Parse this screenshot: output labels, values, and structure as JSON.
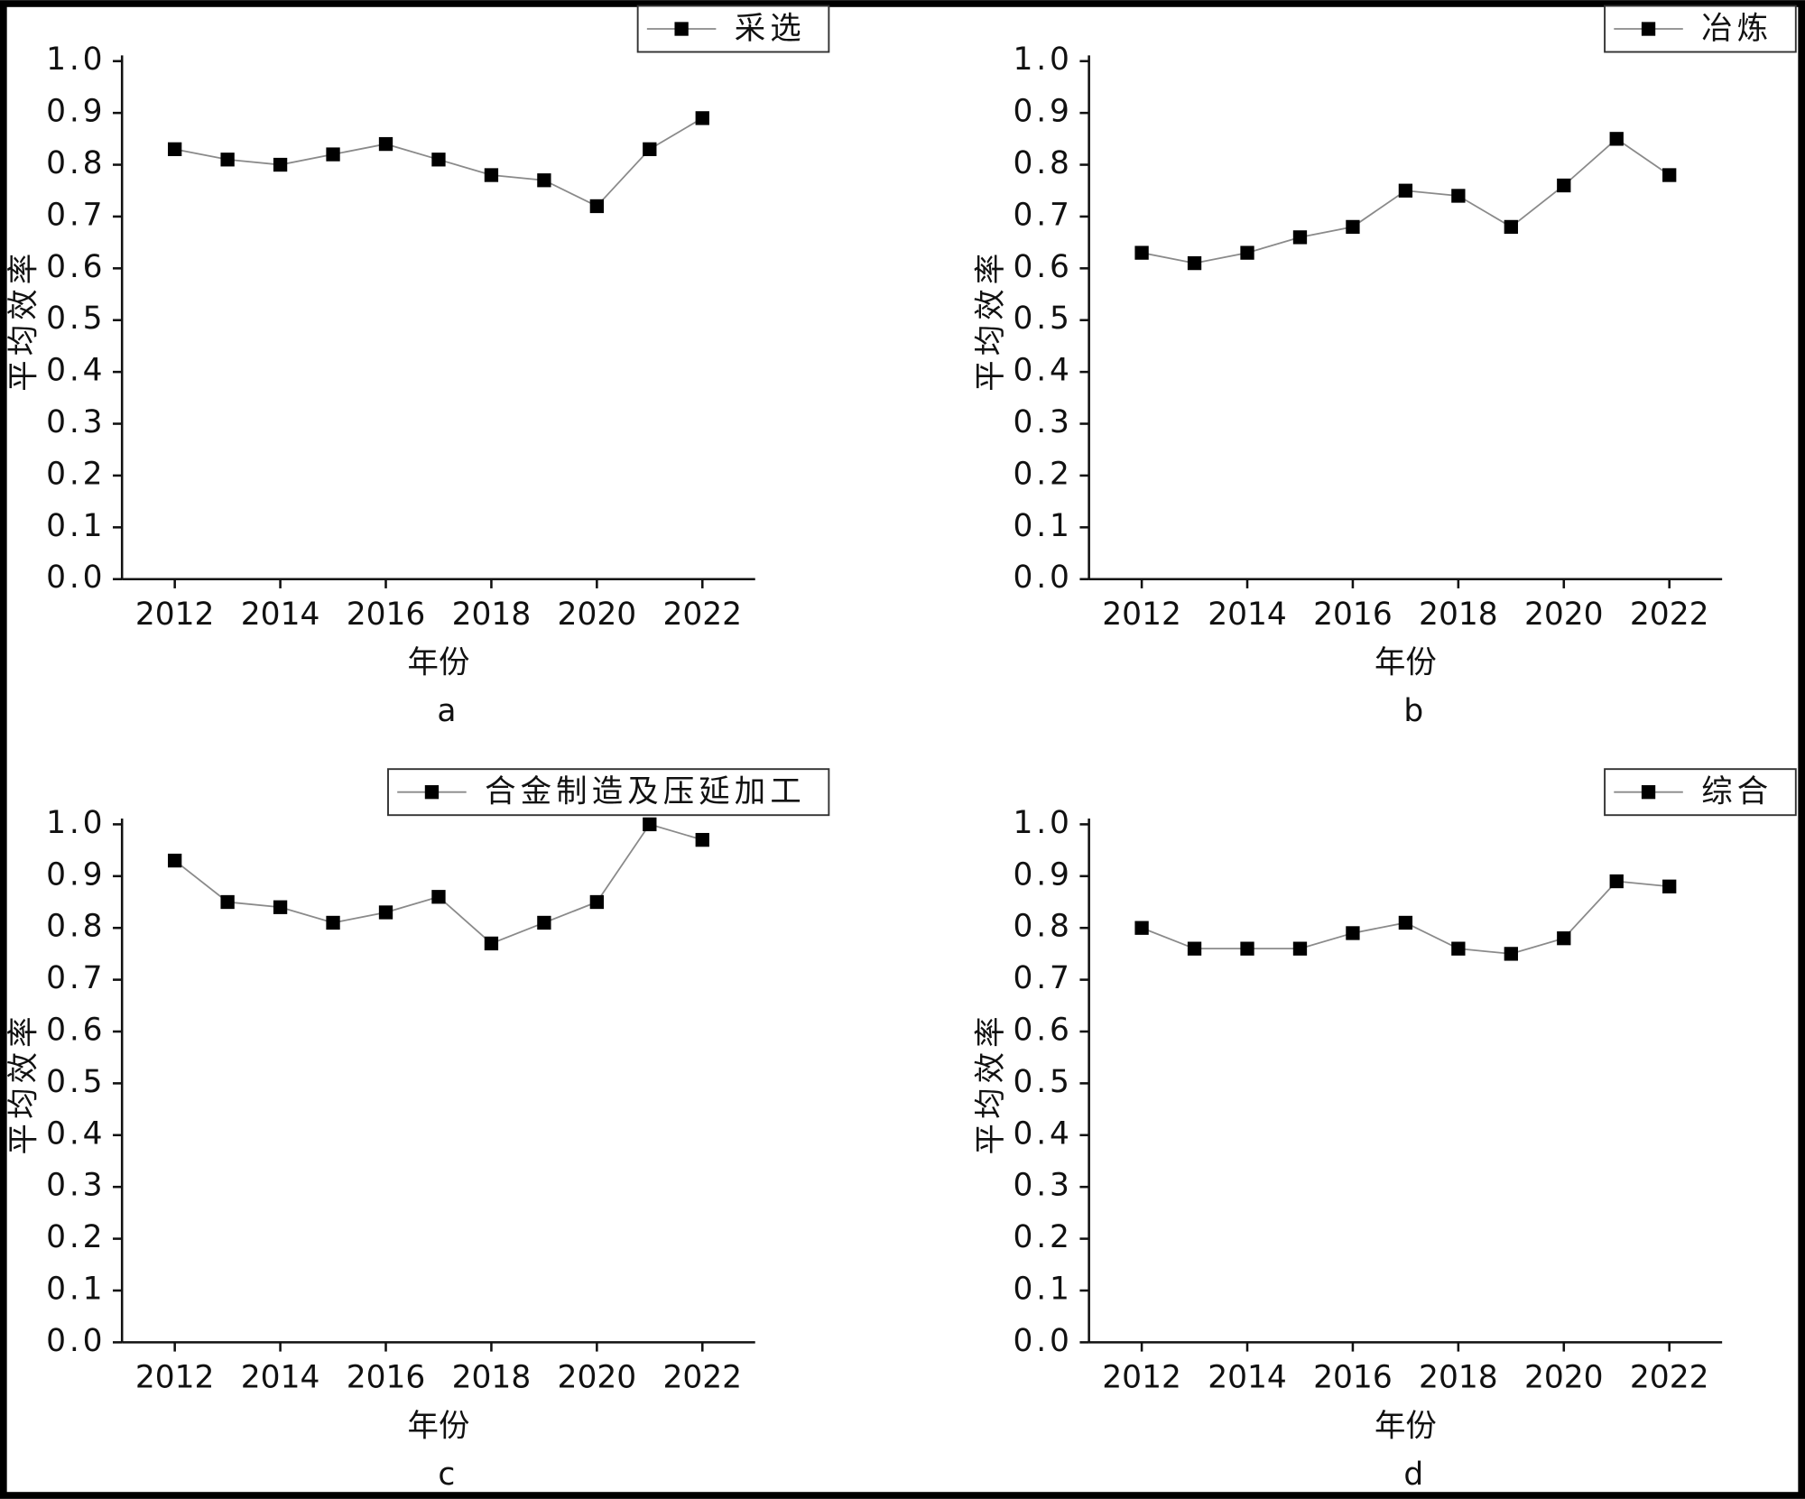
{
  "chart_data": [
    {
      "type": "line",
      "label": "a",
      "xlabel": "年份",
      "ylabel": "平均效率",
      "x": [
        2012,
        2013,
        2014,
        2015,
        2016,
        2017,
        2018,
        2019,
        2020,
        2021,
        2022
      ],
      "series": [
        {
          "name": "采选",
          "color": "#000000",
          "values": [
            0.83,
            0.81,
            0.8,
            0.82,
            0.84,
            0.81,
            0.78,
            0.77,
            0.72,
            0.83,
            0.89
          ]
        }
      ],
      "xlim": [
        2011,
        2023
      ],
      "xticks": [
        2012,
        2014,
        2016,
        2018,
        2020,
        2022
      ],
      "ylim": [
        0,
        1
      ],
      "yticks": [
        {
          "value": 0,
          "label": "0.0"
        },
        0.1,
        0.2,
        0.3,
        0.4,
        0.5,
        0.6,
        0.7,
        0.8,
        0.9,
        {
          "value": 1,
          "label": "1.0"
        }
      ],
      "legend": "upper right"
    },
    {
      "type": "line",
      "label": "b",
      "xlabel": "年份",
      "ylabel": "平均效率",
      "x": [
        2012,
        2013,
        2014,
        2015,
        2016,
        2017,
        2018,
        2019,
        2020,
        2021,
        2022
      ],
      "series": [
        {
          "name": "冶炼",
          "color": "#000000",
          "values": [
            0.63,
            0.61,
            0.63,
            0.66,
            0.68,
            0.75,
            0.74,
            0.68,
            0.76,
            0.85,
            0.78
          ]
        }
      ],
      "xlim": [
        2011,
        2023
      ],
      "xticks": [
        2012,
        2014,
        2016,
        2018,
        2020,
        2022
      ],
      "ylim": [
        0,
        1
      ],
      "yticks": [
        {
          "value": 0,
          "label": "0.0"
        },
        0.1,
        0.2,
        0.3,
        0.4,
        0.5,
        0.6,
        0.7,
        0.8,
        0.9,
        {
          "value": 1,
          "label": "1.0"
        }
      ],
      "legend": "upper right"
    },
    {
      "type": "line",
      "label": "c",
      "xlabel": "年份",
      "ylabel": "平均效率",
      "x": [
        2012,
        2013,
        2014,
        2015,
        2016,
        2017,
        2018,
        2019,
        2020,
        2021,
        2022
      ],
      "series": [
        {
          "name": "合金制造及压延加工",
          "color": "#000000",
          "values": [
            0.93,
            0.85,
            0.84,
            0.81,
            0.83,
            0.86,
            0.77,
            0.81,
            0.85,
            1.0,
            0.97
          ]
        }
      ],
      "xlim": [
        2011,
        2023
      ],
      "xticks": [
        2012,
        2014,
        2016,
        2018,
        2020,
        2022
      ],
      "ylim": [
        0,
        1
      ],
      "yticks": [
        {
          "value": 0,
          "label": "0.0"
        },
        0.1,
        0.2,
        0.3,
        0.4,
        0.5,
        0.6,
        0.7,
        0.8,
        0.9,
        {
          "value": 1,
          "label": "1.0"
        }
      ],
      "legend": "upper right"
    },
    {
      "type": "line",
      "label": "d",
      "xlabel": "年份",
      "ylabel": "平均效率",
      "x": [
        2012,
        2013,
        2014,
        2015,
        2016,
        2017,
        2018,
        2019,
        2020,
        2021,
        2022
      ],
      "series": [
        {
          "name": "综合",
          "color": "#000000",
          "values": [
            0.8,
            0.76,
            0.76,
            0.76,
            0.79,
            0.81,
            0.76,
            0.75,
            0.78,
            0.89,
            0.88
          ]
        }
      ],
      "xlim": [
        2011,
        2023
      ],
      "xticks": [
        2012,
        2014,
        2016,
        2018,
        2020,
        2022
      ],
      "ylim": [
        0,
        1
      ],
      "yticks": [
        {
          "value": 0,
          "label": "0.0"
        },
        0.1,
        0.2,
        0.3,
        0.4,
        0.5,
        0.6,
        0.7,
        0.8,
        0.9,
        {
          "value": 1,
          "label": "1.0"
        }
      ],
      "legend": "upper right"
    }
  ]
}
